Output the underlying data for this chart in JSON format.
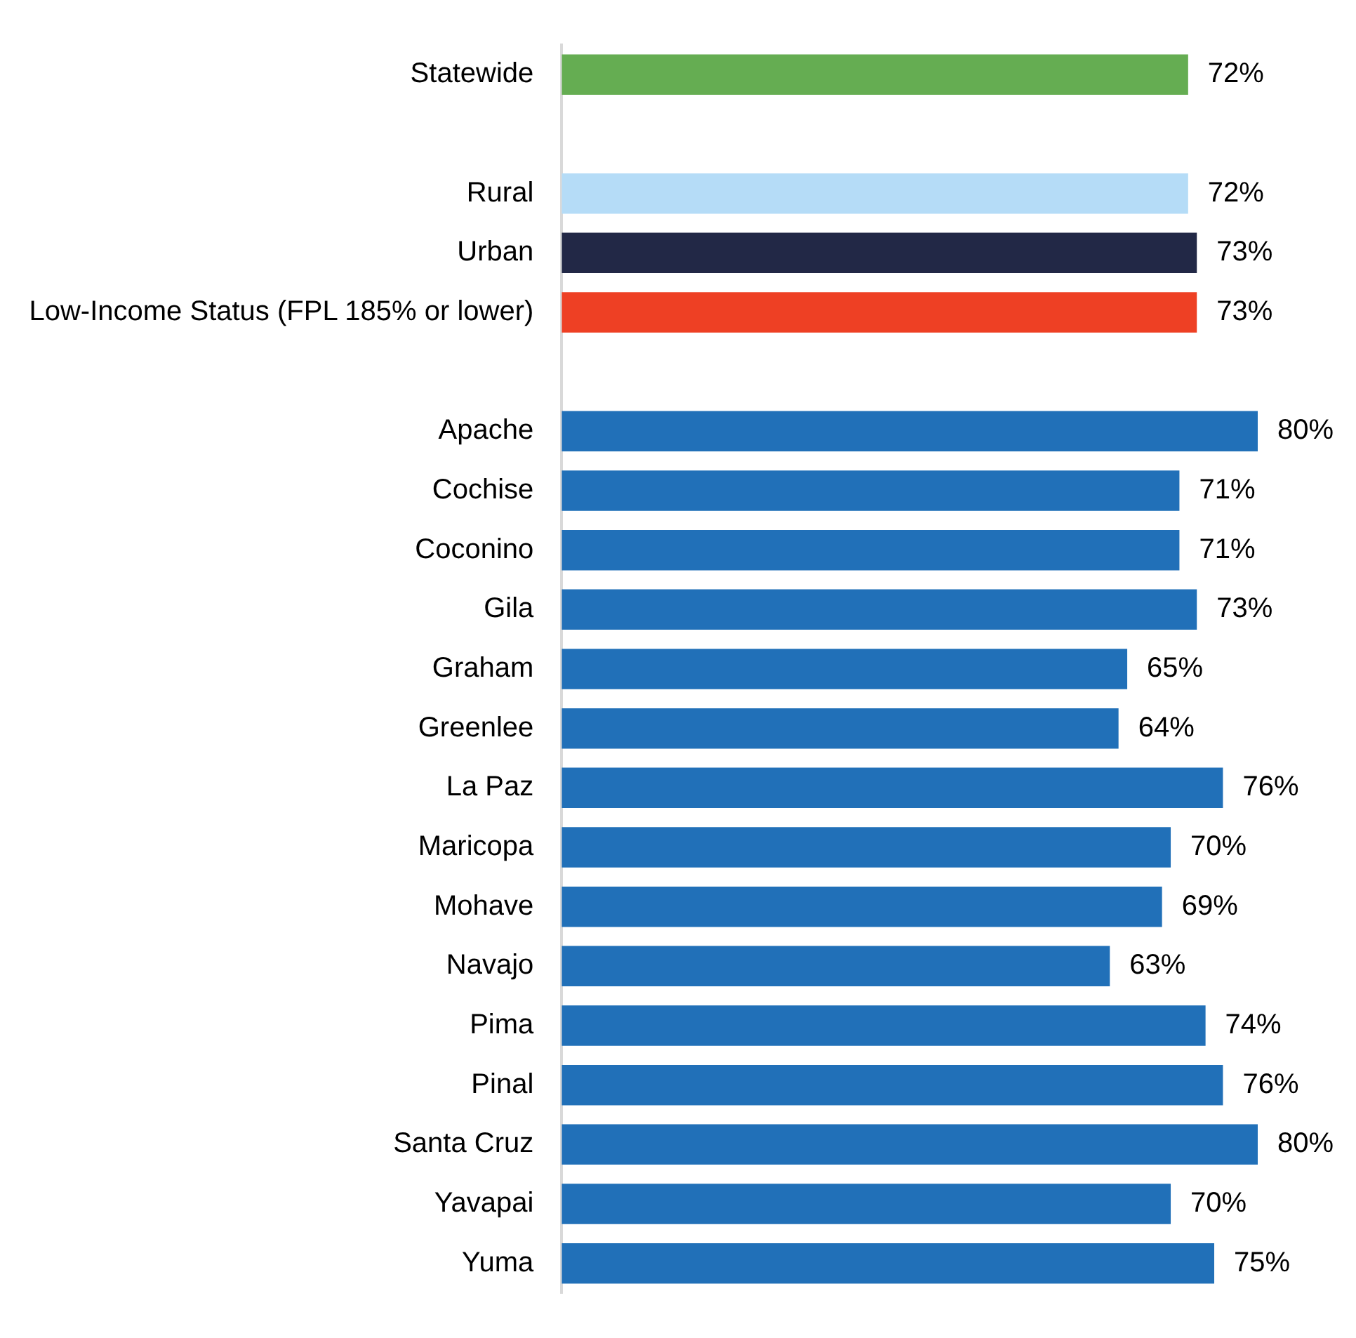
{
  "chart_data": {
    "type": "bar",
    "orientation": "horizontal",
    "categories": [
      "Statewide",
      null,
      "Rural",
      "Urban",
      "Low-Income Status (FPL 185% or lower)",
      null,
      "Apache",
      "Cochise",
      "Coconino",
      "Gila",
      "Graham",
      "Greenlee",
      "La Paz",
      "Maricopa",
      "Mohave",
      "Navajo",
      "Pima",
      "Pinal",
      "Santa Cruz",
      "Yavapai",
      "Yuma"
    ],
    "values": [
      72,
      null,
      72,
      73,
      73,
      null,
      80,
      71,
      71,
      73,
      65,
      64,
      76,
      70,
      69,
      63,
      74,
      76,
      80,
      70,
      75
    ],
    "colors": [
      "#65ad52",
      null,
      "#b5dcf7",
      "#222846",
      "#ee4024",
      null,
      "#2170b8",
      "#2170b8",
      "#2170b8",
      "#2170b8",
      "#2170b8",
      "#2170b8",
      "#2170b8",
      "#2170b8",
      "#2170b8",
      "#2170b8",
      "#2170b8",
      "#2170b8",
      "#2170b8",
      "#2170b8",
      "#2170b8"
    ],
    "value_labels": [
      "72%",
      null,
      "72%",
      "73%",
      "73%",
      null,
      "80%",
      "71%",
      "71%",
      "73%",
      "65%",
      "64%",
      "76%",
      "70%",
      "69%",
      "63%",
      "74%",
      "76%",
      "80%",
      "70%",
      "75%"
    ]
  }
}
